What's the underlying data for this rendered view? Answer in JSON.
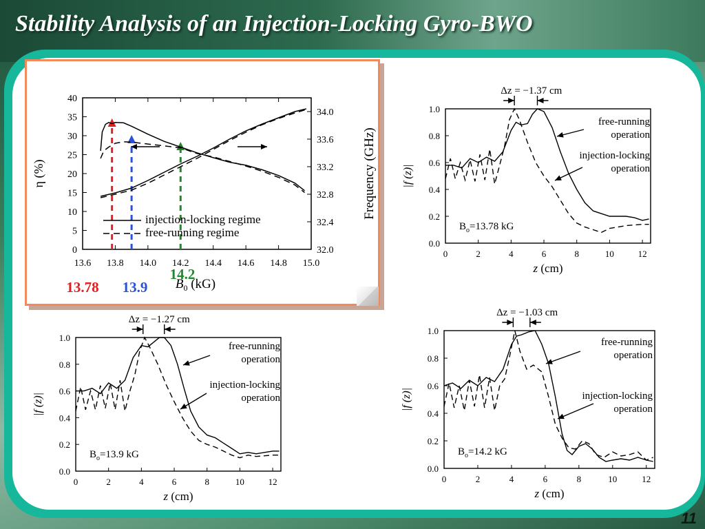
{
  "slide": {
    "title": "Stability Analysis of an Injection-Locking Gyro-BWO",
    "number": "11"
  },
  "colors": {
    "accent": "#16b79a",
    "red": "#e02020",
    "blue": "#2a52d6",
    "green": "#1f8a2a",
    "card_border": "#f08a5d"
  },
  "chart_data": [
    {
      "id": "main",
      "type": "line",
      "xlabel": "B0 (kG)",
      "xlabel_parts": {
        "symbol": "B",
        "subscript": "0",
        "unit": "(kG)"
      },
      "ylabel_left": "η (%)",
      "ylabel_right": "Frequency (GHz)",
      "xlim": [
        13.6,
        15.0
      ],
      "ylim_left": [
        0,
        40
      ],
      "ylim_right": [
        32.0,
        34.2
      ],
      "xticks": [
        "13.6",
        "13.8",
        "14.0",
        "14.2",
        "14.4",
        "14.6",
        "14.8",
        "15.0"
      ],
      "yticks_left": [
        "0",
        "5",
        "10",
        "15",
        "20",
        "25",
        "30",
        "35",
        "40"
      ],
      "yticks_right": [
        "32.0",
        "32.4",
        "32.8",
        "33.2",
        "33.6",
        "34.0"
      ],
      "legend": [
        "injection-locking regime",
        "free-running regime"
      ],
      "series": [
        {
          "name": "injection-locking regime",
          "axis": "left",
          "style": "solid",
          "x": [
            13.71,
            13.72,
            13.74,
            13.76,
            13.78,
            13.8,
            13.85,
            13.9,
            14.0,
            14.1,
            14.2,
            14.3,
            14.4,
            14.5,
            14.6,
            14.7,
            14.8,
            14.9,
            14.96
          ],
          "y": [
            26,
            31,
            33,
            33.5,
            33.2,
            33.5,
            33.4,
            32.5,
            30.4,
            28.5,
            27,
            25.5,
            24.2,
            23,
            22.2,
            21,
            19.5,
            17.5,
            15.5
          ]
        },
        {
          "name": "free-running regime",
          "axis": "left",
          "style": "dashed",
          "x": [
            13.71,
            13.73,
            13.76,
            13.78,
            13.8,
            13.85,
            13.9,
            14.0,
            14.1,
            14.2,
            14.3,
            14.4,
            14.5,
            14.6,
            14.7,
            14.8,
            14.9,
            14.96
          ],
          "y": [
            24,
            26,
            27,
            27.5,
            28,
            28.4,
            28.3,
            27.8,
            27.3,
            26.8,
            25.3,
            24.4,
            23.2,
            22,
            20.6,
            19,
            17,
            15
          ]
        },
        {
          "axis": "right",
          "style": "solid",
          "x": [
            13.71,
            13.8,
            13.9,
            14.0,
            14.1,
            14.2,
            14.3,
            14.4,
            14.5,
            14.6,
            14.7,
            14.8,
            14.9,
            14.97
          ],
          "y": [
            32.77,
            32.82,
            32.89,
            33.0,
            33.12,
            33.24,
            33.35,
            33.47,
            33.6,
            33.72,
            33.82,
            33.91,
            34.0,
            34.04
          ]
        },
        {
          "axis": "right",
          "style": "dashed",
          "x": [
            13.71,
            13.8,
            13.9,
            14.0,
            14.1,
            14.2,
            14.3,
            14.4,
            14.5,
            14.6,
            14.7,
            14.8,
            14.9,
            14.97
          ],
          "y": [
            32.75,
            32.8,
            32.86,
            32.96,
            33.08,
            33.2,
            33.32,
            33.45,
            33.58,
            33.7,
            33.81,
            33.9,
            33.98,
            34.03
          ]
        }
      ],
      "markers": [
        {
          "label": "13.78",
          "x": 13.78,
          "color": "#e02020"
        },
        {
          "label": "13.9",
          "x": 13.9,
          "color": "#2a52d6"
        },
        {
          "label": "14.2",
          "x": 14.2,
          "color": "#1f8a2a"
        }
      ]
    },
    {
      "id": "top_right",
      "type": "line",
      "xlabel": "z (cm)",
      "ylabel": "|f (z)|",
      "xlim": [
        0,
        12.5
      ],
      "ylim": [
        0,
        1.0
      ],
      "xticks": [
        "0",
        "2",
        "4",
        "6",
        "8",
        "10",
        "12"
      ],
      "yticks": [
        "0.0",
        "0.2",
        "0.4",
        "0.6",
        "0.8",
        "1.0"
      ],
      "delta_label": "Δz = −1.37 cm",
      "delta": {
        "from": 4.2,
        "to": 5.6
      },
      "field_label": "Bo=13.78 kG",
      "annotations": [
        "free-running operation",
        "injection-locking operation"
      ],
      "series": [
        {
          "name": "free-running operation",
          "style": "solid",
          "x": [
            0,
            0.5,
            1,
            1.5,
            2,
            2.5,
            3,
            3.5,
            4,
            4.3,
            4.6,
            5,
            5.3,
            5.6,
            6,
            6.5,
            7,
            7.5,
            8,
            8.5,
            9,
            10,
            11,
            11.5,
            12,
            12.4
          ],
          "y": [
            0.58,
            0.58,
            0.56,
            0.63,
            0.6,
            0.64,
            0.61,
            0.68,
            0.84,
            0.9,
            0.88,
            0.89,
            0.96,
            1.0,
            0.98,
            0.86,
            0.68,
            0.52,
            0.4,
            0.3,
            0.24,
            0.2,
            0.2,
            0.19,
            0.17,
            0.18
          ]
        },
        {
          "name": "injection-locking operation",
          "style": "dashed",
          "x": [
            0,
            0.3,
            0.6,
            0.9,
            1.2,
            1.5,
            1.8,
            2.1,
            2.4,
            2.7,
            3,
            3.3,
            3.6,
            3.9,
            4.2,
            4.5,
            5,
            5.5,
            6,
            6.5,
            7,
            7.5,
            8,
            8.5,
            9,
            9.5,
            10,
            11,
            12,
            12.4
          ],
          "y": [
            0.48,
            0.63,
            0.48,
            0.6,
            0.47,
            0.62,
            0.46,
            0.66,
            0.47,
            0.7,
            0.44,
            0.58,
            0.72,
            0.92,
            1.0,
            0.92,
            0.75,
            0.6,
            0.5,
            0.42,
            0.32,
            0.22,
            0.15,
            0.12,
            0.1,
            0.08,
            0.11,
            0.13,
            0.14,
            0.14
          ]
        }
      ]
    },
    {
      "id": "bottom_left",
      "type": "line",
      "xlabel": "z (cm)",
      "ylabel": "|f (z)|",
      "xlim": [
        0,
        12.5
      ],
      "ylim": [
        0,
        1.0
      ],
      "xticks": [
        "0",
        "2",
        "4",
        "6",
        "8",
        "10",
        "12"
      ],
      "yticks": [
        "0.0",
        "0.2",
        "0.4",
        "0.6",
        "0.8",
        "1.0"
      ],
      "delta_label": "Δz = −1.27 cm",
      "delta": {
        "from": 4.1,
        "to": 5.4
      },
      "field_label": "Bo=13.9 kG",
      "annotations": [
        "free-running operation",
        "injection-locking operation"
      ],
      "series": [
        {
          "name": "free-running operation",
          "style": "solid",
          "x": [
            0,
            0.5,
            1,
            1.5,
            2,
            2.5,
            3,
            3.5,
            4,
            4.4,
            4.8,
            5.1,
            5.4,
            5.8,
            6.2,
            6.6,
            7,
            7.5,
            8,
            8.5,
            9,
            9.5,
            10,
            10.5,
            11,
            11.5,
            12,
            12.4
          ],
          "y": [
            0.6,
            0.6,
            0.62,
            0.58,
            0.66,
            0.62,
            0.68,
            0.85,
            0.94,
            0.93,
            0.97,
            1.0,
            1.0,
            0.94,
            0.8,
            0.62,
            0.45,
            0.33,
            0.27,
            0.25,
            0.21,
            0.17,
            0.13,
            0.14,
            0.13,
            0.14,
            0.15,
            0.15
          ]
        },
        {
          "name": "injection-locking operation",
          "style": "dashed",
          "x": [
            0,
            0.3,
            0.6,
            0.9,
            1.2,
            1.5,
            1.8,
            2.1,
            2.4,
            2.7,
            3,
            3.3,
            3.6,
            3.9,
            4.2,
            4.5,
            5,
            5.5,
            6,
            6.5,
            7,
            7.5,
            8,
            8.5,
            9,
            9.5,
            10,
            10.5,
            11,
            12,
            12.4
          ],
          "y": [
            0.45,
            0.63,
            0.46,
            0.6,
            0.46,
            0.64,
            0.47,
            0.66,
            0.46,
            0.68,
            0.45,
            0.6,
            0.72,
            0.9,
            1.0,
            0.93,
            0.8,
            0.65,
            0.52,
            0.4,
            0.3,
            0.23,
            0.2,
            0.18,
            0.15,
            0.12,
            0.1,
            0.12,
            0.11,
            0.12,
            0.12
          ]
        }
      ]
    },
    {
      "id": "bottom_right",
      "type": "line",
      "xlabel": "z (cm)",
      "ylabel": "|f (z)|",
      "xlim": [
        0,
        12.5
      ],
      "ylim": [
        0,
        1.0
      ],
      "xticks": [
        "0",
        "2",
        "4",
        "6",
        "8",
        "10",
        "12"
      ],
      "yticks": [
        "0.0",
        "0.2",
        "0.4",
        "0.6",
        "0.8",
        "1.0"
      ],
      "delta_label": "Δz = −1.03 cm",
      "delta": {
        "from": 4.1,
        "to": 5.1
      },
      "field_label": "Bo=14.2 kG",
      "annotations": [
        "free-running operation",
        "injection-locking operation"
      ],
      "series": [
        {
          "name": "free-running operation",
          "style": "solid",
          "x": [
            0,
            0.5,
            1,
            1.5,
            2,
            2.5,
            3,
            3.5,
            4,
            4.3,
            4.6,
            5,
            5.4,
            5.8,
            6.2,
            6.6,
            7,
            7.3,
            7.6,
            8,
            8.4,
            8.8,
            9.2,
            9.6,
            10,
            10.5,
            11,
            11.5,
            12,
            12.4
          ],
          "y": [
            0.6,
            0.62,
            0.58,
            0.64,
            0.6,
            0.66,
            0.63,
            0.72,
            0.9,
            0.96,
            0.97,
            0.99,
            1.0,
            0.9,
            0.76,
            0.52,
            0.25,
            0.13,
            0.1,
            0.16,
            0.18,
            0.14,
            0.08,
            0.05,
            0.06,
            0.07,
            0.06,
            0.08,
            0.06,
            0.05
          ]
        },
        {
          "name": "injection-locking operation",
          "style": "dashed",
          "x": [
            0,
            0.3,
            0.6,
            0.9,
            1.2,
            1.5,
            1.8,
            2.1,
            2.4,
            2.7,
            3,
            3.3,
            3.6,
            3.9,
            4.2,
            4.5,
            4.9,
            5.3,
            5.8,
            6.2,
            6.6,
            7,
            7.4,
            7.8,
            8.2,
            8.6,
            9,
            9.5,
            10,
            10.5,
            11,
            11.5,
            12,
            12.4
          ],
          "y": [
            0.45,
            0.62,
            0.44,
            0.6,
            0.42,
            0.64,
            0.45,
            0.68,
            0.44,
            0.66,
            0.42,
            0.6,
            0.65,
            0.82,
            1.0,
            0.85,
            0.72,
            0.75,
            0.7,
            0.52,
            0.32,
            0.22,
            0.15,
            0.14,
            0.2,
            0.18,
            0.1,
            0.08,
            0.12,
            0.09,
            0.1,
            0.12,
            0.06,
            0.08
          ]
        }
      ]
    }
  ]
}
